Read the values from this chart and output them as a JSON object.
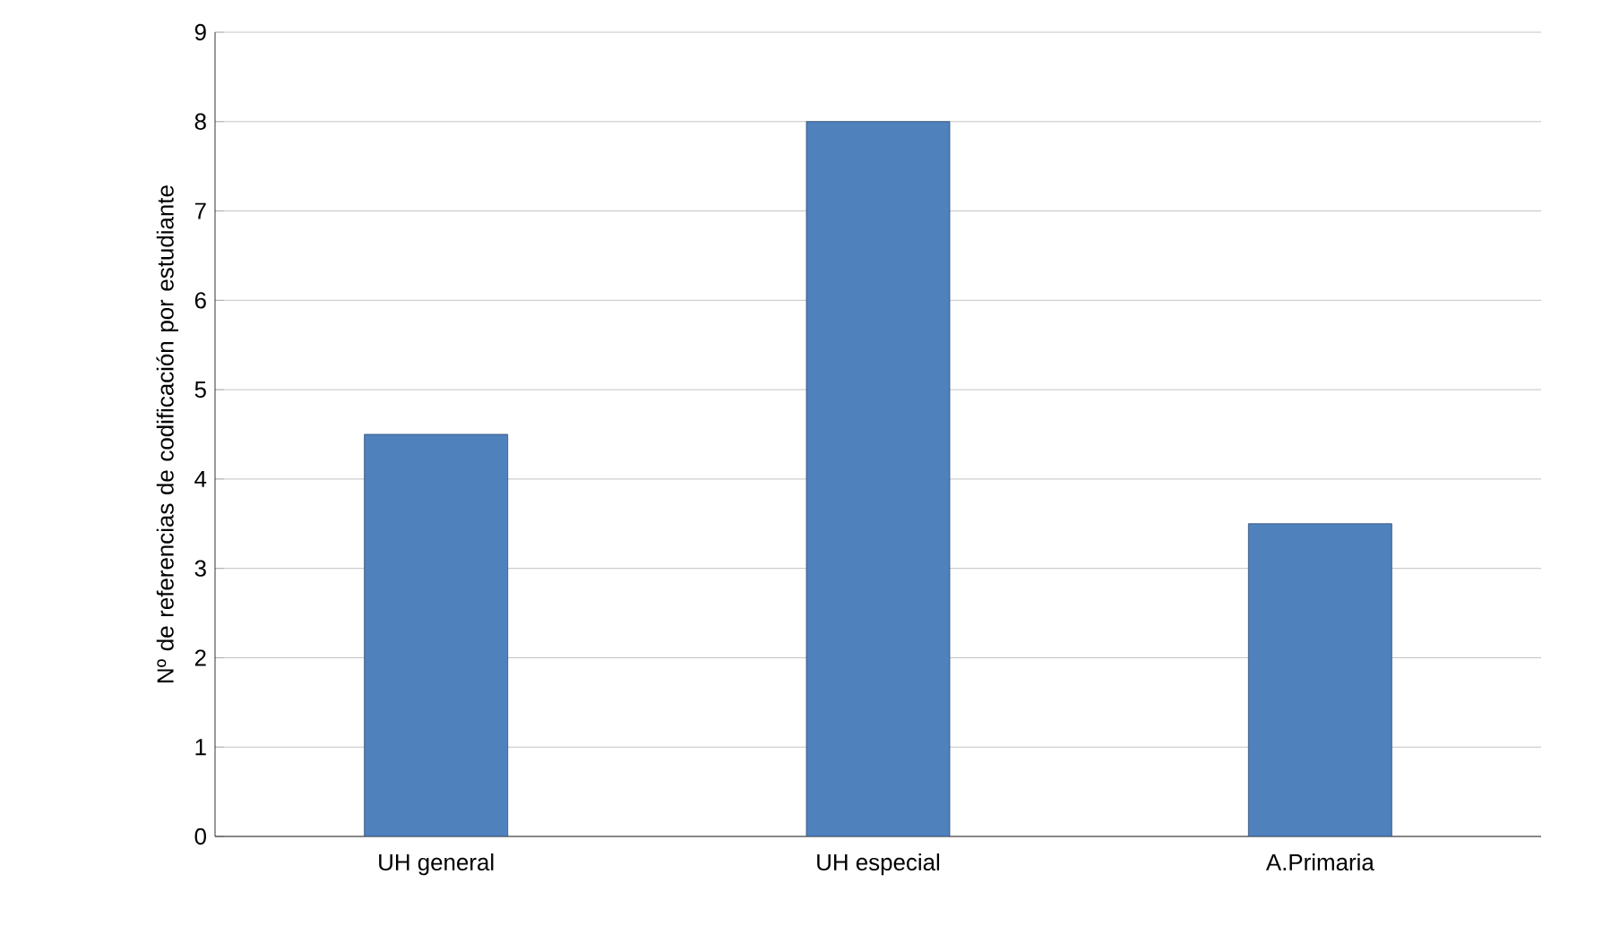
{
  "chart_data": {
    "type": "bar",
    "ylabel": "Nº de referencias de codificación por estudiante",
    "categories": [
      "UH general",
      "UH especial",
      "A.Primaria"
    ],
    "values": [
      4.5,
      8,
      3.5
    ],
    "color": "#4f81bd",
    "ylim": [
      0,
      9
    ],
    "yticks": [
      0,
      1,
      2,
      3,
      4,
      5,
      6,
      7,
      8,
      9
    ],
    "grid": "y"
  }
}
